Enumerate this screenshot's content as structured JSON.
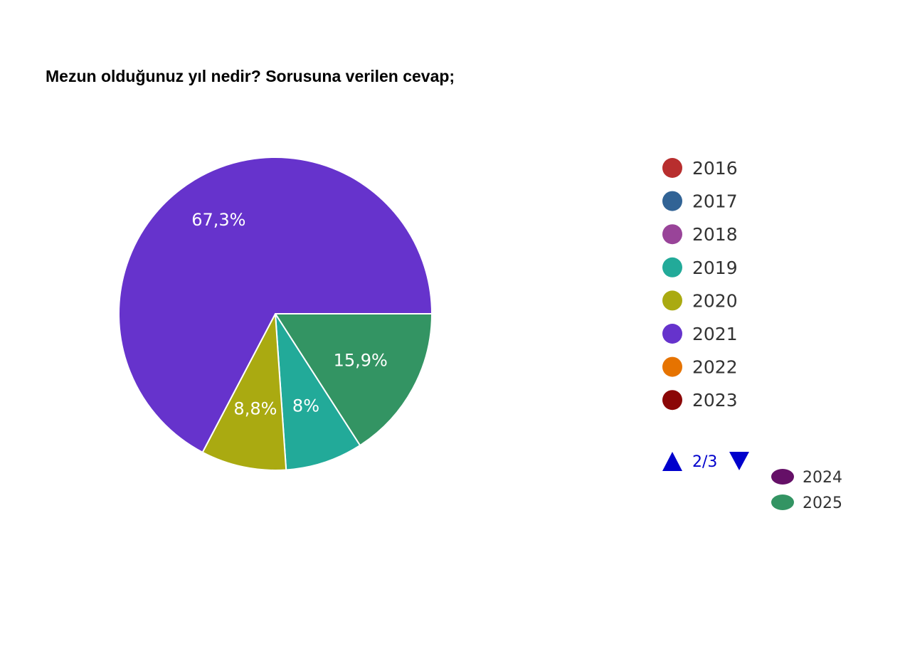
{
  "chart_data": {
    "type": "pie",
    "title": "Mezun olduğunuz yıl nedir? Sorusuna verilen cevap;",
    "slices": [
      {
        "name": "2025",
        "value": 15.9,
        "label": "15,9%",
        "color": "#339463"
      },
      {
        "name": "2019",
        "value": 8.0,
        "label": "8%",
        "color": "#22aa99"
      },
      {
        "name": "2020",
        "value": 8.8,
        "label": "8,8%",
        "color": "#aaaa11"
      },
      {
        "name": "2021",
        "value": 67.3,
        "label": "67,3%",
        "color": "#6633cc"
      }
    ],
    "legend": {
      "placement": "right",
      "entries": [
        {
          "name": "2016",
          "color": "#b82e2e"
        },
        {
          "name": "2017",
          "color": "#316395"
        },
        {
          "name": "2018",
          "color": "#994499"
        },
        {
          "name": "2019",
          "color": "#22aa99"
        },
        {
          "name": "2020",
          "color": "#aaaa11"
        },
        {
          "name": "2021",
          "color": "#6633cc"
        },
        {
          "name": "2022",
          "color": "#e67300"
        },
        {
          "name": "2023",
          "color": "#8b0707"
        }
      ],
      "overflow_entries": [
        {
          "name": "2024",
          "color": "#651067"
        },
        {
          "name": "2025",
          "color": "#339463"
        }
      ],
      "pager": {
        "text": "2/3",
        "color": "#0000cc"
      }
    }
  }
}
